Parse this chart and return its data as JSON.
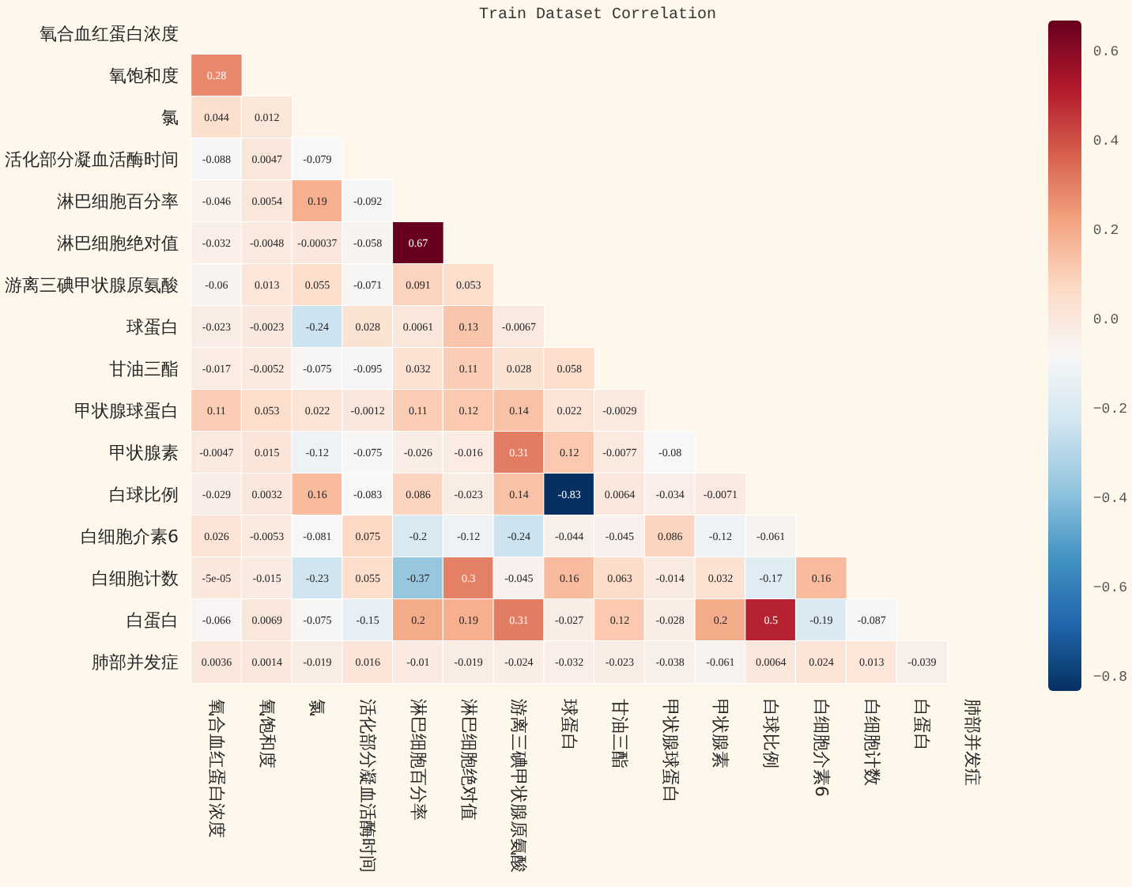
{
  "chart_data": {
    "type": "heatmap",
    "title": "Train Dataset Correlation",
    "categories": [
      "氧合血红蛋白浓度",
      "氧饱和度",
      "氯",
      "活化部分凝血活酶时间",
      "淋巴细胞百分率",
      "淋巴细胞绝对值",
      "游离三碘甲状腺原氨酸",
      "球蛋白",
      "甘油三酯",
      "甲状腺球蛋白",
      "甲状腺素",
      "白球比例",
      "白细胞介素6",
      "白细胞计数",
      "白蛋白",
      "肺部并发症"
    ],
    "y_categories": [
      "氧合血红蛋白浓度",
      "氧饱和度",
      "氯",
      "活化部分凝血活酶时间",
      "淋巴细胞百分率",
      "淋巴细胞绝对值",
      "游离三碘甲状腺原氨酸",
      "球蛋白",
      "甘油三酯",
      "甲状腺球蛋白",
      "甲状腺素",
      "白球比例",
      "白细胞介素6",
      "白细胞计数",
      "白蛋白",
      "肺部并发症"
    ],
    "cells": [
      [
        null,
        null,
        null,
        null,
        null,
        null,
        null,
        null,
        null,
        null,
        null,
        null,
        null,
        null,
        null,
        null
      ],
      [
        0.28,
        null,
        null,
        null,
        null,
        null,
        null,
        null,
        null,
        null,
        null,
        null,
        null,
        null,
        null,
        null
      ],
      [
        0.044,
        0.012,
        null,
        null,
        null,
        null,
        null,
        null,
        null,
        null,
        null,
        null,
        null,
        null,
        null,
        null
      ],
      [
        -0.088,
        0.0047,
        -0.079,
        null,
        null,
        null,
        null,
        null,
        null,
        null,
        null,
        null,
        null,
        null,
        null,
        null
      ],
      [
        -0.046,
        0.0054,
        0.19,
        -0.092,
        null,
        null,
        null,
        null,
        null,
        null,
        null,
        null,
        null,
        null,
        null,
        null
      ],
      [
        -0.032,
        -0.0048,
        -0.00037,
        -0.058,
        0.67,
        null,
        null,
        null,
        null,
        null,
        null,
        null,
        null,
        null,
        null,
        null
      ],
      [
        -0.06,
        0.013,
        0.055,
        -0.071,
        0.091,
        0.053,
        null,
        null,
        null,
        null,
        null,
        null,
        null,
        null,
        null,
        null
      ],
      [
        -0.023,
        -0.0023,
        -0.24,
        0.028,
        0.0061,
        0.13,
        -0.0067,
        null,
        null,
        null,
        null,
        null,
        null,
        null,
        null,
        null
      ],
      [
        -0.017,
        -0.0052,
        -0.075,
        -0.095,
        0.032,
        0.11,
        0.028,
        0.058,
        null,
        null,
        null,
        null,
        null,
        null,
        null,
        null
      ],
      [
        0.11,
        0.053,
        0.022,
        -0.0012,
        0.11,
        0.12,
        0.14,
        0.022,
        -0.0029,
        null,
        null,
        null,
        null,
        null,
        null,
        null
      ],
      [
        -0.0047,
        0.015,
        -0.12,
        -0.075,
        -0.026,
        -0.016,
        0.31,
        0.12,
        -0.0077,
        -0.08,
        null,
        null,
        null,
        null,
        null,
        null
      ],
      [
        -0.029,
        0.0032,
        0.16,
        -0.083,
        0.086,
        -0.023,
        0.14,
        -0.83,
        0.0064,
        -0.034,
        -0.0071,
        null,
        null,
        null,
        null,
        null
      ],
      [
        0.026,
        -0.0053,
        -0.081,
        0.075,
        -0.2,
        -0.12,
        -0.24,
        -0.044,
        -0.045,
        0.086,
        -0.12,
        -0.061,
        null,
        null,
        null,
        null
      ],
      [
        -5e-05,
        -0.015,
        -0.23,
        0.055,
        -0.37,
        0.3,
        -0.045,
        0.16,
        0.063,
        -0.014,
        0.032,
        -0.17,
        0.16,
        null,
        null,
        null
      ],
      [
        -0.066,
        0.0069,
        -0.075,
        -0.15,
        0.2,
        0.19,
        0.31,
        -0.027,
        0.12,
        -0.028,
        0.2,
        0.5,
        -0.19,
        -0.087,
        null,
        null
      ],
      [
        0.0036,
        0.0014,
        -0.019,
        0.016,
        -0.01,
        -0.019,
        -0.024,
        -0.032,
        -0.023,
        -0.038,
        -0.061,
        0.0064,
        0.024,
        0.013,
        -0.039,
        null
      ]
    ],
    "clim": [
      -0.83,
      0.67
    ],
    "cticks": [
      {
        "value": -0.8,
        "label": "−0.8"
      },
      {
        "value": -0.6,
        "label": "−0.6"
      },
      {
        "value": -0.4,
        "label": "−0.4"
      },
      {
        "value": -0.2,
        "label": "−0.2"
      },
      {
        "value": 0,
        "label": "0.0"
      },
      0.2,
      0.4,
      0.6
    ],
    "data_labels": true
  }
}
